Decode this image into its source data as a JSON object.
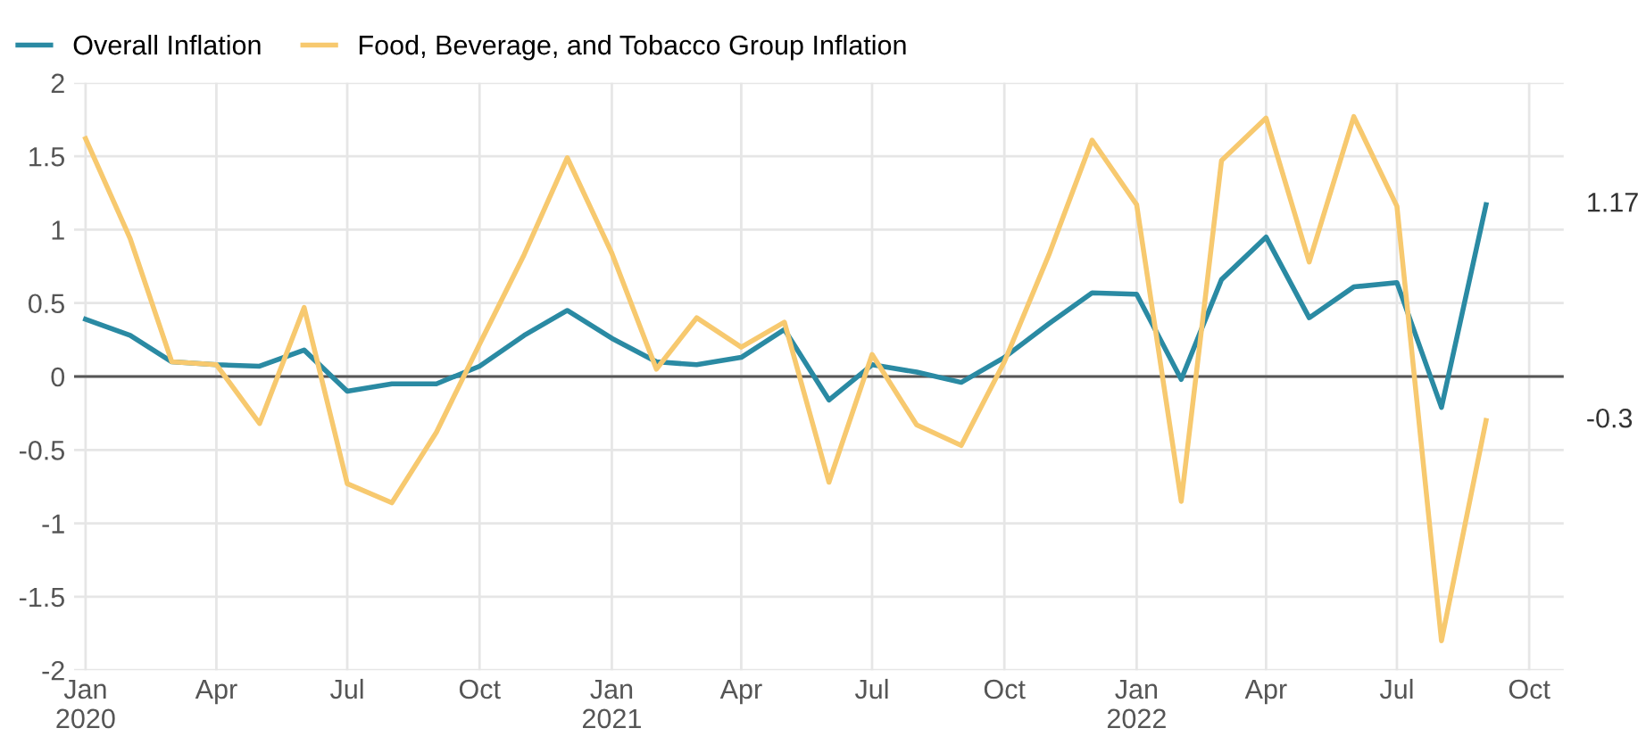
{
  "chart_data": {
    "type": "line",
    "x": [
      "2020-01",
      "2020-02",
      "2020-03",
      "2020-04",
      "2020-05",
      "2020-06",
      "2020-07",
      "2020-08",
      "2020-09",
      "2020-10",
      "2020-11",
      "2020-12",
      "2021-01",
      "2021-02",
      "2021-03",
      "2021-04",
      "2021-05",
      "2021-06",
      "2021-07",
      "2021-08",
      "2021-09",
      "2021-10",
      "2021-11",
      "2021-12",
      "2022-01",
      "2022-02",
      "2022-03",
      "2022-04",
      "2022-05",
      "2022-06",
      "2022-07",
      "2022-08",
      "2022-09"
    ],
    "series": [
      {
        "name": "Overall Inflation",
        "color": "#2a8aa3",
        "values": [
          0.39,
          0.28,
          0.1,
          0.08,
          0.07,
          0.18,
          -0.1,
          -0.05,
          -0.05,
          0.07,
          0.28,
          0.45,
          0.26,
          0.1,
          0.08,
          0.13,
          0.32,
          -0.16,
          0.08,
          0.03,
          -0.04,
          0.13,
          0.36,
          0.57,
          0.56,
          -0.02,
          0.66,
          0.95,
          0.4,
          0.61,
          0.64,
          -0.21,
          1.17
        ]
      },
      {
        "name": "Food, Beverage, and Tobacco Group Inflation",
        "color": "#f7c96f",
        "values": [
          1.62,
          0.94,
          0.1,
          0.08,
          -0.32,
          0.47,
          -0.73,
          -0.86,
          -0.38,
          0.22,
          0.83,
          1.49,
          0.84,
          0.05,
          0.4,
          0.2,
          0.37,
          -0.72,
          0.15,
          -0.33,
          -0.47,
          0.1,
          0.83,
          1.61,
          1.17,
          -0.85,
          1.47,
          1.76,
          0.78,
          1.77,
          1.16,
          -1.8,
          -0.3
        ]
      }
    ],
    "xlim": [
      "2019-12-24",
      "2022-10-25"
    ],
    "xticks": [
      {
        "value": "2020-01",
        "label": "Jan\n2020"
      },
      {
        "value": "2020-04",
        "label": "Apr"
      },
      {
        "value": "2020-07",
        "label": "Jul"
      },
      {
        "value": "2020-10",
        "label": "Oct"
      },
      {
        "value": "2021-01",
        "label": "Jan\n2021"
      },
      {
        "value": "2021-04",
        "label": "Apr"
      },
      {
        "value": "2021-07",
        "label": "Jul"
      },
      {
        "value": "2021-10",
        "label": "Oct"
      },
      {
        "value": "2022-01",
        "label": "Jan\n2022"
      },
      {
        "value": "2022-04",
        "label": "Apr"
      },
      {
        "value": "2022-07",
        "label": "Jul"
      },
      {
        "value": "2022-10",
        "label": "Oct"
      }
    ],
    "ylim": [
      -2,
      2
    ],
    "yticks": [
      -2,
      -1.5,
      -1,
      -0.5,
      0,
      0.5,
      1,
      1.5,
      2
    ],
    "ref_lines": [
      {
        "axis": "y",
        "value": 0,
        "color": "#555555"
      }
    ],
    "annotations": [
      "1.17",
      "-0.3"
    ],
    "grid": true,
    "legend": "top left",
    "marker": "none",
    "line_style": "solid"
  }
}
